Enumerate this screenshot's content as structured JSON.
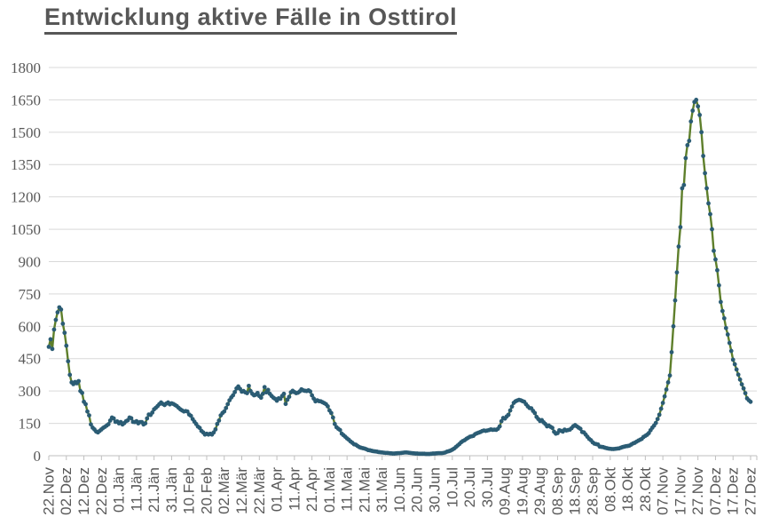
{
  "title": "Entwicklung aktive Fälle in Osttirol",
  "colors": {
    "line": "#5e7f2b",
    "marker": "#2b5c74",
    "text": "#595959",
    "gridline": "#d9d9d9",
    "axis": "#bfbfbf",
    "title": "#575757",
    "background": "#ffffff"
  },
  "chart_data": {
    "type": "line",
    "title": "Entwicklung aktive Fälle in Osttirol",
    "xlabel": "",
    "ylabel": "",
    "ylim": [
      0,
      1800
    ],
    "y_ticks": [
      0,
      150,
      300,
      450,
      600,
      750,
      900,
      1050,
      1200,
      1350,
      1500,
      1650,
      1800
    ],
    "grid": "horizontal",
    "legend": "none",
    "x_unit": "day index from first label, one point per day",
    "tick_interval_days": 10,
    "x_tick_labels": [
      "22.Nov",
      "02.Dez",
      "12.Dez",
      "22.Dez",
      "01.Jän",
      "11.Jän",
      "21.Jän",
      "31.Jän",
      "10.Feb",
      "20.Feb",
      "02.Mär",
      "12.Mär",
      "22.Mär",
      "01.Apr",
      "11.Apr",
      "21.Apr",
      "01.Mai",
      "11.Mai",
      "21.Mai",
      "31.Mai",
      "10.Jun",
      "20.Jun",
      "30.Jun",
      "10.Jul",
      "20.Jul",
      "30.Jul",
      "09.Aug",
      "19.Aug",
      "29.Aug",
      "08.Sep",
      "18.Sep",
      "28.Sep",
      "08.Okt",
      "18.Okt",
      "28.Okt",
      "07.Nov",
      "17.Nov",
      "27.Nov",
      "07.Dez",
      "17.Dez",
      "27.Dez"
    ],
    "series": [
      {
        "name": "aktive Fälle",
        "marker": "circle",
        "values": [
          505,
          540,
          495,
          585,
          630,
          665,
          688,
          678,
          612,
          570,
          510,
          438,
          375,
          340,
          332,
          342,
          336,
          346,
          300,
          291,
          250,
          239,
          205,
          187,
          145,
          130,
          122,
          112,
          108,
          115,
          122,
          129,
          134,
          140,
          146,
          163,
          177,
          173,
          157,
          159,
          150,
          156,
          145,
          151,
          160,
          164,
          177,
          174,
          157,
          156,
          160,
          150,
          156,
          156,
          145,
          150,
          173,
          191,
          189,
          200,
          215,
          222,
          230,
          239,
          247,
          240,
          235,
          242,
          247,
          238,
          243,
          240,
          235,
          230,
          222,
          215,
          210,
          205,
          207,
          205,
          191,
          185,
          170,
          158,
          147,
          135,
          129,
          115,
          108,
          98,
          102,
          98,
          102,
          98,
          108,
          122,
          147,
          163,
          187,
          198,
          205,
          221,
          239,
          257,
          270,
          280,
          295,
          312,
          321,
          310,
          297,
          300,
          294,
          290,
          324,
          300,
          287,
          280,
          283,
          291,
          277,
          269,
          287,
          318,
          294,
          305,
          287,
          277,
          269,
          264,
          255,
          266,
          264,
          277,
          287,
          240,
          260,
          273,
          294,
          301,
          295,
          290,
          292,
          298,
          308,
          303,
          301,
          300,
          303,
          298,
          280,
          265,
          252,
          257,
          253,
          252,
          248,
          244,
          239,
          229,
          210,
          198,
          177,
          147,
          132,
          125,
          119,
          102,
          95,
          88,
          80,
          74,
          66,
          60,
          53,
          51,
          45,
          40,
          37,
          35,
          33,
          30,
          26,
          25,
          23,
          21,
          20,
          19,
          17,
          16,
          15,
          14,
          13,
          13,
          12,
          11,
          10,
          10,
          11,
          12,
          12,
          13,
          14,
          15,
          15,
          14,
          13,
          12,
          11,
          10,
          10,
          9,
          9,
          9,
          9,
          8,
          8,
          8,
          9,
          10,
          10,
          11,
          12,
          12,
          12,
          13,
          15,
          19,
          21,
          24,
          28,
          33,
          40,
          47,
          54,
          62,
          68,
          72,
          78,
          83,
          88,
          90,
          92,
          100,
          104,
          107,
          110,
          114,
          117,
          115,
          117,
          119,
          122,
          120,
          121,
          120,
          125,
          136,
          160,
          175,
          172,
          182,
          190,
          210,
          228,
          245,
          252,
          256,
          259,
          257,
          253,
          250,
          239,
          229,
          221,
          220,
          208,
          198,
          180,
          170,
          161,
          165,
          155,
          147,
          136,
          140,
          134,
          129,
          111,
          102,
          105,
          118,
          115,
          112,
          121,
          117,
          119,
          121,
          128,
          137,
          142,
          136,
          130,
          125,
          110,
          108,
          98,
          88,
          78,
          72,
          62,
          56,
          54,
          52,
          42,
          41,
          40,
          37,
          35,
          33,
          32,
          31,
          31,
          32,
          33,
          34,
          37,
          40,
          42,
          44,
          45,
          47,
          52,
          57,
          60,
          65,
          70,
          74,
          78,
          87,
          92,
          97,
          105,
          118,
          130,
          140,
          152,
          170,
          190,
          218,
          245,
          275,
          307,
          340,
          372,
          480,
          600,
          720,
          850,
          970,
          1060,
          1240,
          1255,
          1380,
          1440,
          1460,
          1550,
          1600,
          1640,
          1650,
          1620,
          1580,
          1500,
          1390,
          1310,
          1240,
          1170,
          1120,
          1050,
          950,
          910,
          860,
          790,
          713,
          671,
          637,
          592,
          562,
          523,
          486,
          445,
          424,
          400,
          376,
          353,
          331,
          312,
          290,
          266,
          257,
          250
        ]
      }
    ]
  }
}
